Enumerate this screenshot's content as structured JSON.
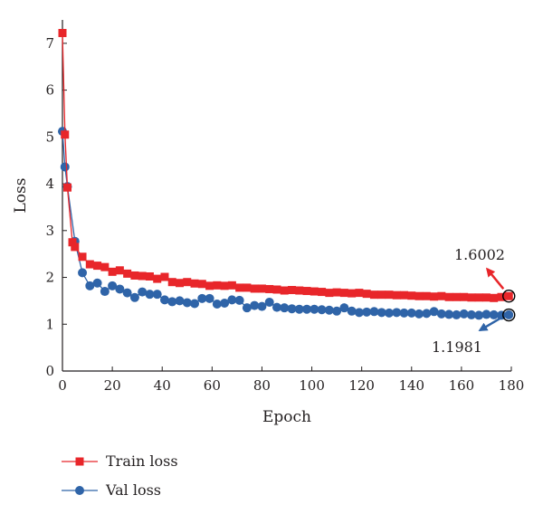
{
  "chart_data": {
    "type": "line",
    "title": "",
    "xlabel": "Epoch",
    "ylabel": "Loss",
    "xlim": [
      0,
      180
    ],
    "ylim": [
      0,
      7.5
    ],
    "xticks": [
      0,
      20,
      40,
      60,
      80,
      100,
      120,
      140,
      160,
      180
    ],
    "yticks": [
      0,
      1,
      2,
      3,
      4,
      5,
      6,
      7
    ],
    "grid": false,
    "legend": "bottom-left",
    "series": [
      {
        "name": "Train loss",
        "color": "#e8262a",
        "marker": "square",
        "x": [
          0,
          1,
          2,
          4,
          5,
          8,
          11,
          14,
          17,
          20,
          23,
          26,
          29,
          32,
          35,
          38,
          41,
          44,
          47,
          50,
          53,
          56,
          59,
          62,
          65,
          68,
          71,
          74,
          77,
          80,
          83,
          86,
          89,
          92,
          95,
          98,
          101,
          104,
          107,
          110,
          113,
          116,
          119,
          122,
          125,
          128,
          131,
          134,
          137,
          140,
          143,
          146,
          149,
          152,
          155,
          158,
          161,
          164,
          167,
          170,
          173,
          176,
          179
        ],
        "y": [
          7.22,
          5.05,
          3.92,
          2.75,
          2.65,
          2.44,
          2.28,
          2.25,
          2.22,
          2.12,
          2.15,
          2.08,
          2.04,
          2.03,
          2.02,
          1.97,
          2.01,
          1.9,
          1.88,
          1.9,
          1.87,
          1.86,
          1.82,
          1.83,
          1.82,
          1.83,
          1.78,
          1.78,
          1.76,
          1.76,
          1.75,
          1.74,
          1.72,
          1.73,
          1.72,
          1.71,
          1.7,
          1.69,
          1.67,
          1.68,
          1.67,
          1.66,
          1.67,
          1.65,
          1.63,
          1.63,
          1.63,
          1.62,
          1.62,
          1.61,
          1.6,
          1.6,
          1.59,
          1.6,
          1.58,
          1.58,
          1.58,
          1.57,
          1.57,
          1.57,
          1.56,
          1.58,
          1.6
        ]
      },
      {
        "name": "Val loss",
        "color": "#2f64a8",
        "marker": "circle",
        "x": [
          0,
          1,
          2,
          5,
          8,
          11,
          14,
          17,
          20,
          23,
          26,
          29,
          32,
          35,
          38,
          41,
          44,
          47,
          50,
          53,
          56,
          59,
          62,
          65,
          68,
          71,
          74,
          77,
          80,
          83,
          86,
          89,
          92,
          95,
          98,
          101,
          104,
          107,
          110,
          113,
          116,
          119,
          122,
          125,
          128,
          131,
          134,
          137,
          140,
          143,
          146,
          149,
          152,
          155,
          158,
          161,
          164,
          167,
          170,
          173,
          176,
          179
        ],
        "y": [
          5.12,
          4.36,
          3.94,
          2.77,
          2.1,
          1.82,
          1.88,
          1.7,
          1.82,
          1.75,
          1.67,
          1.57,
          1.69,
          1.64,
          1.64,
          1.52,
          1.48,
          1.5,
          1.46,
          1.44,
          1.55,
          1.55,
          1.43,
          1.45,
          1.52,
          1.51,
          1.35,
          1.4,
          1.38,
          1.47,
          1.36,
          1.35,
          1.33,
          1.32,
          1.32,
          1.32,
          1.31,
          1.3,
          1.28,
          1.35,
          1.28,
          1.25,
          1.26,
          1.27,
          1.25,
          1.24,
          1.25,
          1.24,
          1.24,
          1.22,
          1.23,
          1.27,
          1.22,
          1.21,
          1.2,
          1.22,
          1.2,
          1.19,
          1.21,
          1.2,
          1.19,
          1.2
        ]
      }
    ],
    "annotations": [
      {
        "text": "1.6002",
        "x": 179,
        "y": 1.6002,
        "color": "#e8262a"
      },
      {
        "text": "1.1981",
        "x": 179,
        "y": 1.1981,
        "color": "#2f64a8"
      }
    ]
  }
}
